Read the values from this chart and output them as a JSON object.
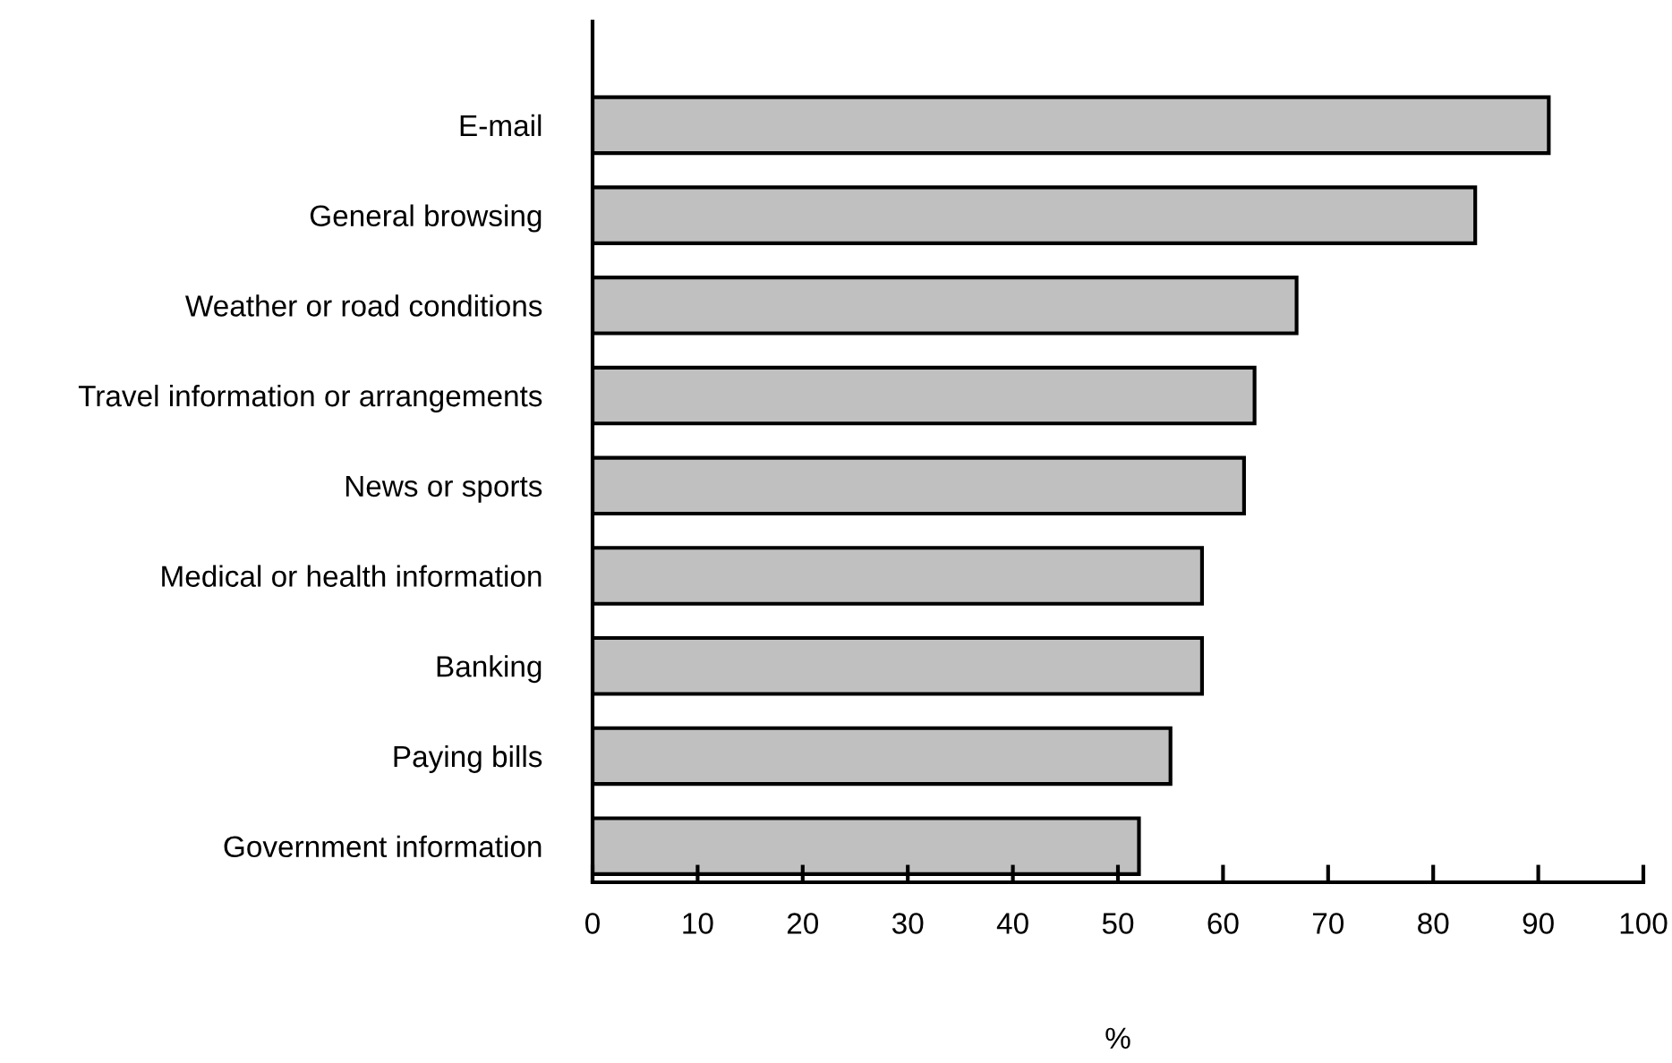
{
  "chart_data": {
    "type": "bar",
    "orientation": "horizontal",
    "xlabel": "%",
    "categories": [
      "E-mail",
      "General browsing",
      "Weather or road conditions",
      "Travel information or arrangements",
      "News or sports",
      "Medical or health information",
      "Banking",
      "Paying bills",
      "Government information"
    ],
    "values": [
      91,
      84,
      67,
      63,
      62,
      58,
      58,
      55,
      52
    ],
    "color": "#c0c0c0",
    "xlim": [
      0,
      100
    ],
    "xticks": [
      0,
      10,
      20,
      30,
      40,
      50,
      60,
      70,
      80,
      90,
      100
    ],
    "grid": false,
    "legend": false
  }
}
